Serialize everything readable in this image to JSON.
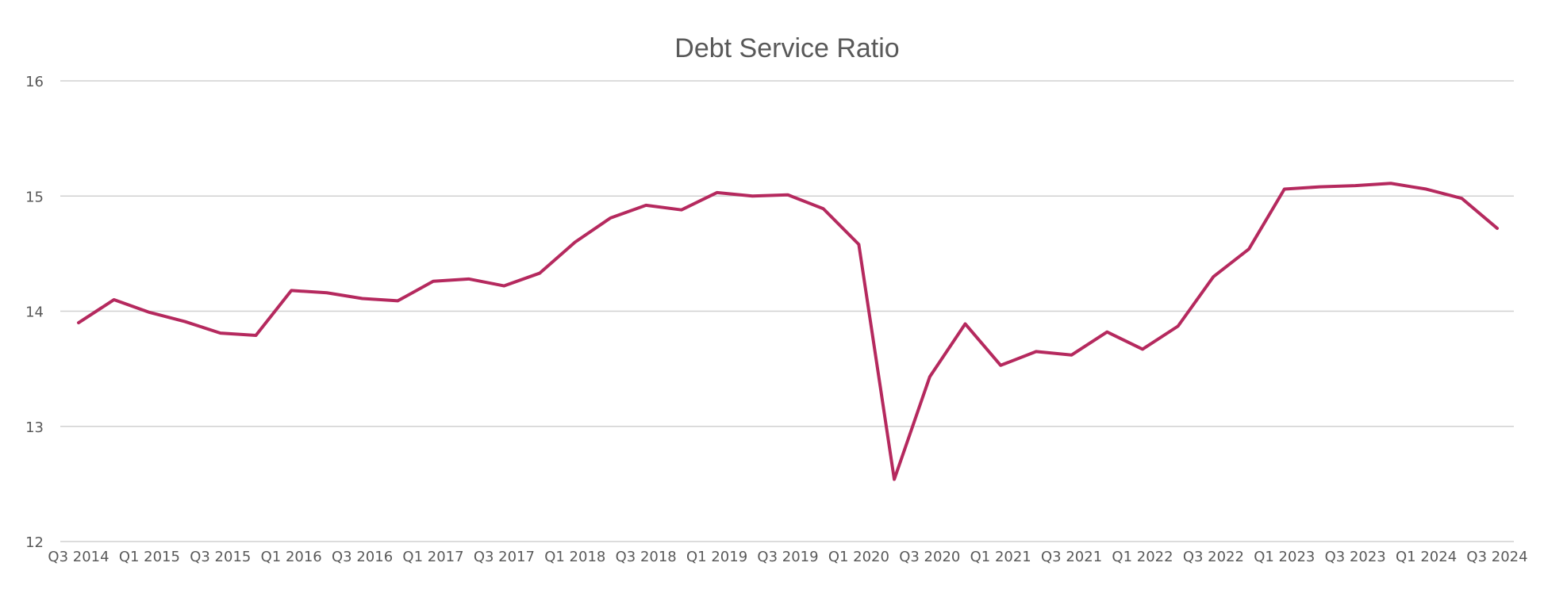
{
  "chart_data": {
    "type": "line",
    "title": "Debt Service Ratio",
    "xlabel": "",
    "ylabel": "",
    "ylim": [
      12,
      16
    ],
    "y_ticks": [
      "12",
      "13",
      "14",
      "15",
      "16"
    ],
    "grid": true,
    "legend": "none",
    "x_tick_labels": [
      "Q3 2014",
      "Q1 2015",
      "Q3 2015",
      "Q1 2016",
      "Q3 2016",
      "Q1 2017",
      "Q3 2017",
      "Q1 2018",
      "Q3 2018",
      "Q1 2019",
      "Q3 2019",
      "Q1 2020",
      "Q3 2020",
      "Q1 2021",
      "Q3 2021",
      "Q1 2022",
      "Q3 2022",
      "Q1 2023",
      "Q3 2023",
      "Q1 2024",
      "Q3 2024"
    ],
    "categories": [
      "Q3 2014",
      "Q4 2014",
      "Q1 2015",
      "Q2 2015",
      "Q3 2015",
      "Q4 2015",
      "Q1 2016",
      "Q2 2016",
      "Q3 2016",
      "Q4 2016",
      "Q1 2017",
      "Q2 2017",
      "Q3 2017",
      "Q4 2017",
      "Q1 2018",
      "Q2 2018",
      "Q3 2018",
      "Q4 2018",
      "Q1 2019",
      "Q2 2019",
      "Q3 2019",
      "Q4 2019",
      "Q1 2020",
      "Q2 2020",
      "Q3 2020",
      "Q4 2020",
      "Q1 2021",
      "Q2 2021",
      "Q3 2021",
      "Q4 2021",
      "Q1 2022",
      "Q2 2022",
      "Q3 2022",
      "Q4 2022",
      "Q1 2023",
      "Q2 2023",
      "Q3 2023",
      "Q4 2023",
      "Q1 2024",
      "Q2 2024",
      "Q3 2024"
    ],
    "series": [
      {
        "color": "#b5295e",
        "values": [
          13.9,
          14.1,
          13.99,
          13.91,
          13.81,
          13.79,
          14.18,
          14.16,
          14.11,
          14.09,
          14.26,
          14.28,
          14.22,
          14.33,
          14.6,
          14.81,
          14.92,
          14.88,
          15.03,
          15.0,
          15.01,
          14.89,
          14.58,
          12.54,
          13.43,
          13.89,
          13.53,
          13.65,
          13.62,
          13.82,
          13.67,
          13.87,
          14.3,
          14.54,
          15.06,
          15.08,
          15.09,
          15.11,
          15.06,
          14.98,
          14.72
        ]
      }
    ]
  }
}
